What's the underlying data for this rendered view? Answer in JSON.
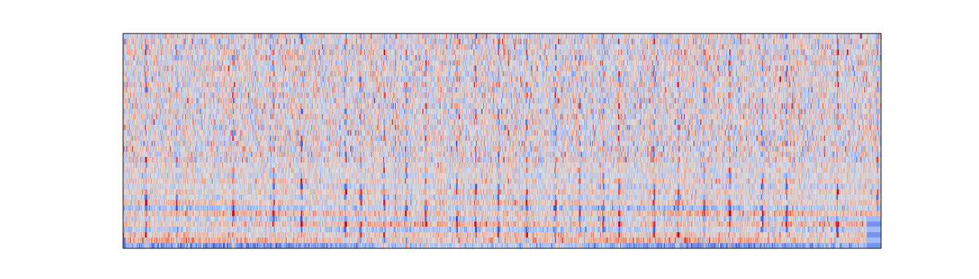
{
  "chart_data": {
    "type": "heatmap",
    "title": "",
    "xlabel": "",
    "ylabel": "",
    "axes_ticks": "none",
    "colormap": "coolwarm",
    "colormap_stops": [
      "#3b4cc0",
      "#8db0fe",
      "#dddddd",
      "#f4987a",
      "#b40426"
    ],
    "value_range": [
      -1,
      1
    ],
    "n_time_frames": 1000,
    "n_coefficients": 40,
    "grid": false,
    "legend": "none",
    "vertical_streaks_at_frame": [
      30,
      70,
      145,
      198,
      235,
      293,
      313,
      344,
      373,
      399,
      440,
      465,
      495,
      532,
      570,
      602,
      633,
      654,
      700,
      732,
      766,
      800,
      843,
      875,
      942,
      995
    ],
    "baseline_row_means": [
      -0.75,
      0.45,
      0.25,
      -0.3,
      0.35,
      -0.2,
      0.3,
      -0.35,
      0.2,
      -0.1,
      0.15,
      -0.1,
      0.1,
      -0.05,
      0.05,
      0.05,
      0,
      0.05,
      0,
      0,
      0,
      0,
      0,
      0,
      0,
      0,
      0,
      0,
      0,
      0,
      0,
      0,
      0,
      0,
      0,
      0,
      0,
      0,
      0,
      0
    ]
  }
}
